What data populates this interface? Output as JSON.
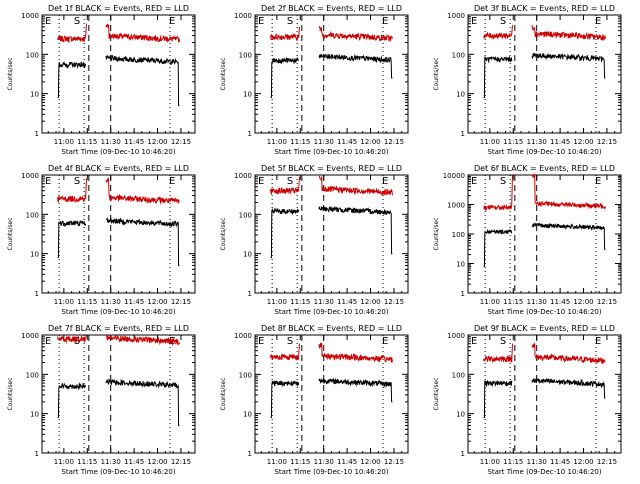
{
  "figure": {
    "xlabel": "Start Time (09-Dec-10 10:46:20)",
    "ylabel": "Counts/sec",
    "x_ticks": [
      "11:00",
      "11:15",
      "11:30",
      "11:45",
      "12:00",
      "12:15"
    ],
    "series_labels": {
      "black": "BLACK = Events",
      "red": "RED = LLD"
    },
    "colors": {
      "events": "#000000",
      "lld": "#cc0000",
      "axes": "#000000",
      "background": "#ffffff"
    }
  },
  "chart_data": [
    {
      "type": "line",
      "title": "Det 1f BLACK = Events, RED = LLD",
      "yscale": "log",
      "ylim": [
        1,
        1000
      ],
      "y_ticks": [
        "1",
        "10",
        "100",
        "1000"
      ],
      "xlim": [
        "10:46",
        "12:24"
      ],
      "markers": {
        "E_start": "E",
        "S": "S",
        "E_end": "E"
      },
      "series": [
        {
          "name": "Events",
          "level_pre": 55,
          "level_post": 80,
          "drop_end": 5
        },
        {
          "name": "LLD",
          "level_pre": 250,
          "level_post": 300,
          "spike": 600
        }
      ]
    },
    {
      "type": "line",
      "title": "Det 2f BLACK = Events, RED = LLD",
      "yscale": "log",
      "ylim": [
        1,
        1000
      ],
      "y_ticks": [
        "1",
        "10",
        "100",
        "1000"
      ],
      "xlim": [
        "10:46",
        "12:24"
      ],
      "markers": {
        "E_start": "E",
        "S": "S",
        "E_end": "E"
      },
      "series": [
        {
          "name": "Events",
          "level_pre": 70,
          "level_post": 90,
          "drop_end": 25
        },
        {
          "name": "LLD",
          "level_pre": 280,
          "level_post": 320,
          "spike": 500
        }
      ]
    },
    {
      "type": "line",
      "title": "Det 3f BLACK = Events, RED = LLD",
      "yscale": "log",
      "ylim": [
        1,
        1000
      ],
      "y_ticks": [
        "1",
        "10",
        "100",
        "1000"
      ],
      "xlim": [
        "10:46",
        "12:24"
      ],
      "markers": {
        "E_start": "E",
        "S": "S",
        "E_end": "E"
      },
      "series": [
        {
          "name": "Events",
          "level_pre": 75,
          "level_post": 95,
          "drop_end": 25
        },
        {
          "name": "LLD",
          "level_pre": 300,
          "level_post": 340,
          "spike": 550
        }
      ]
    },
    {
      "type": "line",
      "title": "Det 4f BLACK = Events, RED = LLD",
      "yscale": "log",
      "ylim": [
        1,
        1000
      ],
      "y_ticks": [
        "1",
        "10",
        "100",
        "1000"
      ],
      "xlim": [
        "10:46",
        "12:24"
      ],
      "markers": {
        "E_start": "E",
        "S": "S",
        "E_end": "E"
      },
      "series": [
        {
          "name": "Events",
          "level_pre": 60,
          "level_post": 70,
          "drop_end": 5
        },
        {
          "name": "LLD",
          "level_pre": 250,
          "level_post": 270,
          "spike": 800
        }
      ]
    },
    {
      "type": "line",
      "title": "Det 5f BLACK = Events, RED = LLD",
      "yscale": "log",
      "ylim": [
        1,
        1000
      ],
      "y_ticks": [
        "1",
        "10",
        "100",
        "1000"
      ],
      "xlim": [
        "10:46",
        "12:24"
      ],
      "markers": {
        "E_start": "E",
        "S": "S",
        "E_end": "E"
      },
      "series": [
        {
          "name": "Events",
          "level_pre": 120,
          "level_post": 140,
          "drop_end": 10
        },
        {
          "name": "LLD",
          "level_pre": 400,
          "level_post": 450,
          "spike": 900
        }
      ]
    },
    {
      "type": "line",
      "title": "Det 6f BLACK = Events, RED = LLD",
      "yscale": "log",
      "ylim": [
        1,
        10000
      ],
      "y_ticks": [
        "1",
        "10",
        "100",
        "1000",
        "10000"
      ],
      "xlim": [
        "10:46",
        "12:24"
      ],
      "markers": {
        "E_start": "E",
        "S": "S",
        "E_end": "E"
      },
      "series": [
        {
          "name": "Events",
          "level_pre": 120,
          "level_post": 200,
          "drop_end": 30
        },
        {
          "name": "LLD",
          "level_pre": 800,
          "level_post": 1100,
          "spike": 10000
        }
      ]
    },
    {
      "type": "line",
      "title": "Det 7f BLACK = Events, RED = LLD",
      "yscale": "log",
      "ylim": [
        1,
        1000
      ],
      "y_ticks": [
        "1",
        "10",
        "100",
        "1000"
      ],
      "xlim": [
        "10:46",
        "12:24"
      ],
      "markers": {
        "E_start": "E",
        "S": "S",
        "E_end": "E"
      },
      "series": [
        {
          "name": "Events",
          "level_pre": 50,
          "level_post": 65,
          "drop_end": 5
        },
        {
          "name": "LLD",
          "level_pre": 800,
          "level_post": 850,
          "spike": 1000
        }
      ]
    },
    {
      "type": "line",
      "title": "Det 8f BLACK = Events, RED = LLD",
      "yscale": "log",
      "ylim": [
        1,
        1000
      ],
      "y_ticks": [
        "1",
        "10",
        "100",
        "1000"
      ],
      "xlim": [
        "10:46",
        "12:24"
      ],
      "markers": {
        "E_start": "E",
        "S": "S",
        "E_end": "E"
      },
      "series": [
        {
          "name": "Events",
          "level_pre": 60,
          "level_post": 70,
          "drop_end": 20
        },
        {
          "name": "LLD",
          "level_pre": 280,
          "level_post": 300,
          "spike": 600
        }
      ]
    },
    {
      "type": "line",
      "title": "Det 9f BLACK = Events, RED = LLD",
      "yscale": "log",
      "ylim": [
        1,
        1000
      ],
      "y_ticks": [
        "1",
        "10",
        "100",
        "1000"
      ],
      "xlim": [
        "10:46",
        "12:24"
      ],
      "markers": {
        "E_start": "E",
        "S": "S",
        "E_end": "E"
      },
      "series": [
        {
          "name": "Events",
          "level_pre": 60,
          "level_post": 70,
          "drop_end": 25
        },
        {
          "name": "LLD",
          "level_pre": 250,
          "level_post": 280,
          "spike": 600
        }
      ]
    }
  ]
}
